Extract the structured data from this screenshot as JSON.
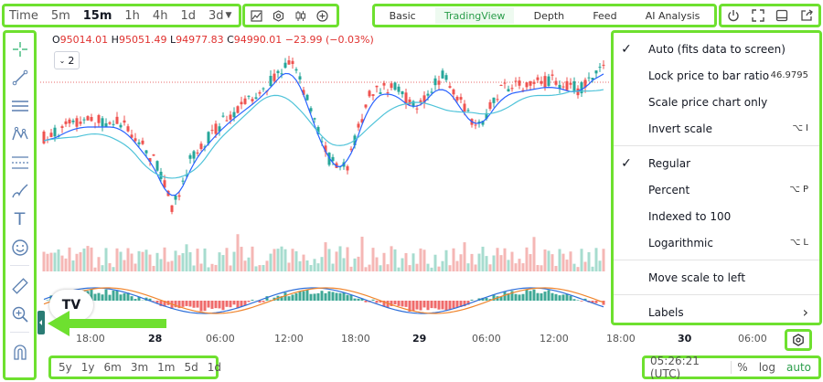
{
  "timeframes": {
    "time_label": "Time",
    "items": [
      "5m",
      "15m",
      "1h",
      "4h",
      "1d",
      "3d"
    ],
    "active": "15m"
  },
  "chart_tools": {
    "icons": [
      "indicator-icon",
      "settings-icon",
      "candle-icon",
      "add-icon"
    ]
  },
  "modes": {
    "items": [
      "Basic",
      "TradingView",
      "Depth",
      "Feed",
      "AI Analysis"
    ],
    "active": "TradingView"
  },
  "actions": {
    "icons": [
      "power-icon",
      "fullscreen-icon",
      "layout-icon",
      "share-icon"
    ]
  },
  "sidebar": {
    "icons": [
      "crosshair-icon",
      "trend-line-icon",
      "horizontal-lines-icon",
      "pattern-icon",
      "fib-icon",
      "brush-icon",
      "text-icon",
      "emoji-icon",
      "ruler-icon",
      "zoom-icon",
      "magnet-icon"
    ]
  },
  "ohlc": {
    "o_key": "O",
    "o_val": "95014.01",
    "h_key": "H",
    "h_val": "95051.49",
    "l_key": "L",
    "l_val": "94977.83",
    "c_key": "C",
    "c_val": "94990.01",
    "change": "−23.99 (−0.03%)"
  },
  "interval_box": "2",
  "logo_text": "TV",
  "x_axis": {
    "labels": [
      {
        "text": "18:00",
        "bold": false
      },
      {
        "text": "28",
        "bold": true
      },
      {
        "text": "06:00",
        "bold": false
      },
      {
        "text": "12:00",
        "bold": false
      },
      {
        "text": "18:00",
        "bold": false
      },
      {
        "text": "29",
        "bold": true
      },
      {
        "text": "06:00",
        "bold": false
      },
      {
        "text": "12:00",
        "bold": false
      },
      {
        "text": "18:00",
        "bold": false
      },
      {
        "text": "30",
        "bold": true
      },
      {
        "text": "06:00",
        "bold": false
      }
    ]
  },
  "scale_menu": {
    "items": [
      {
        "label": "Auto (fits data to screen)",
        "checked": true,
        "shortcut": ""
      },
      {
        "label": "Lock price to bar ratio",
        "checked": false,
        "shortcut": "46.9795"
      },
      {
        "label": "Scale price chart only",
        "checked": false,
        "shortcut": ""
      },
      {
        "label": "Invert scale",
        "checked": false,
        "shortcut": "⌥ I"
      },
      {
        "sep": true
      },
      {
        "label": "Regular",
        "checked": true,
        "shortcut": ""
      },
      {
        "label": "Percent",
        "checked": false,
        "shortcut": "⌥ P"
      },
      {
        "label": "Indexed to 100",
        "checked": false,
        "shortcut": ""
      },
      {
        "label": "Logarithmic",
        "checked": false,
        "shortcut": "⌥ L"
      },
      {
        "sep": true
      },
      {
        "label": "Move scale to left",
        "checked": false,
        "shortcut": ""
      },
      {
        "sep": true
      },
      {
        "label": "Labels",
        "checked": false,
        "shortcut": "›"
      }
    ]
  },
  "ranges": {
    "items": [
      "5y",
      "1y",
      "6m",
      "3m",
      "1m",
      "5d",
      "1d"
    ]
  },
  "status": {
    "clock": "05:26:21 (UTC)",
    "pct": "%",
    "log": "log",
    "auto": "auto"
  },
  "colors": {
    "up": "#26a69a",
    "down": "#ef5350",
    "highlight": "#6ee02f",
    "ma_fast": "#2962ff",
    "ma_slow": "#4fc3d9"
  }
}
